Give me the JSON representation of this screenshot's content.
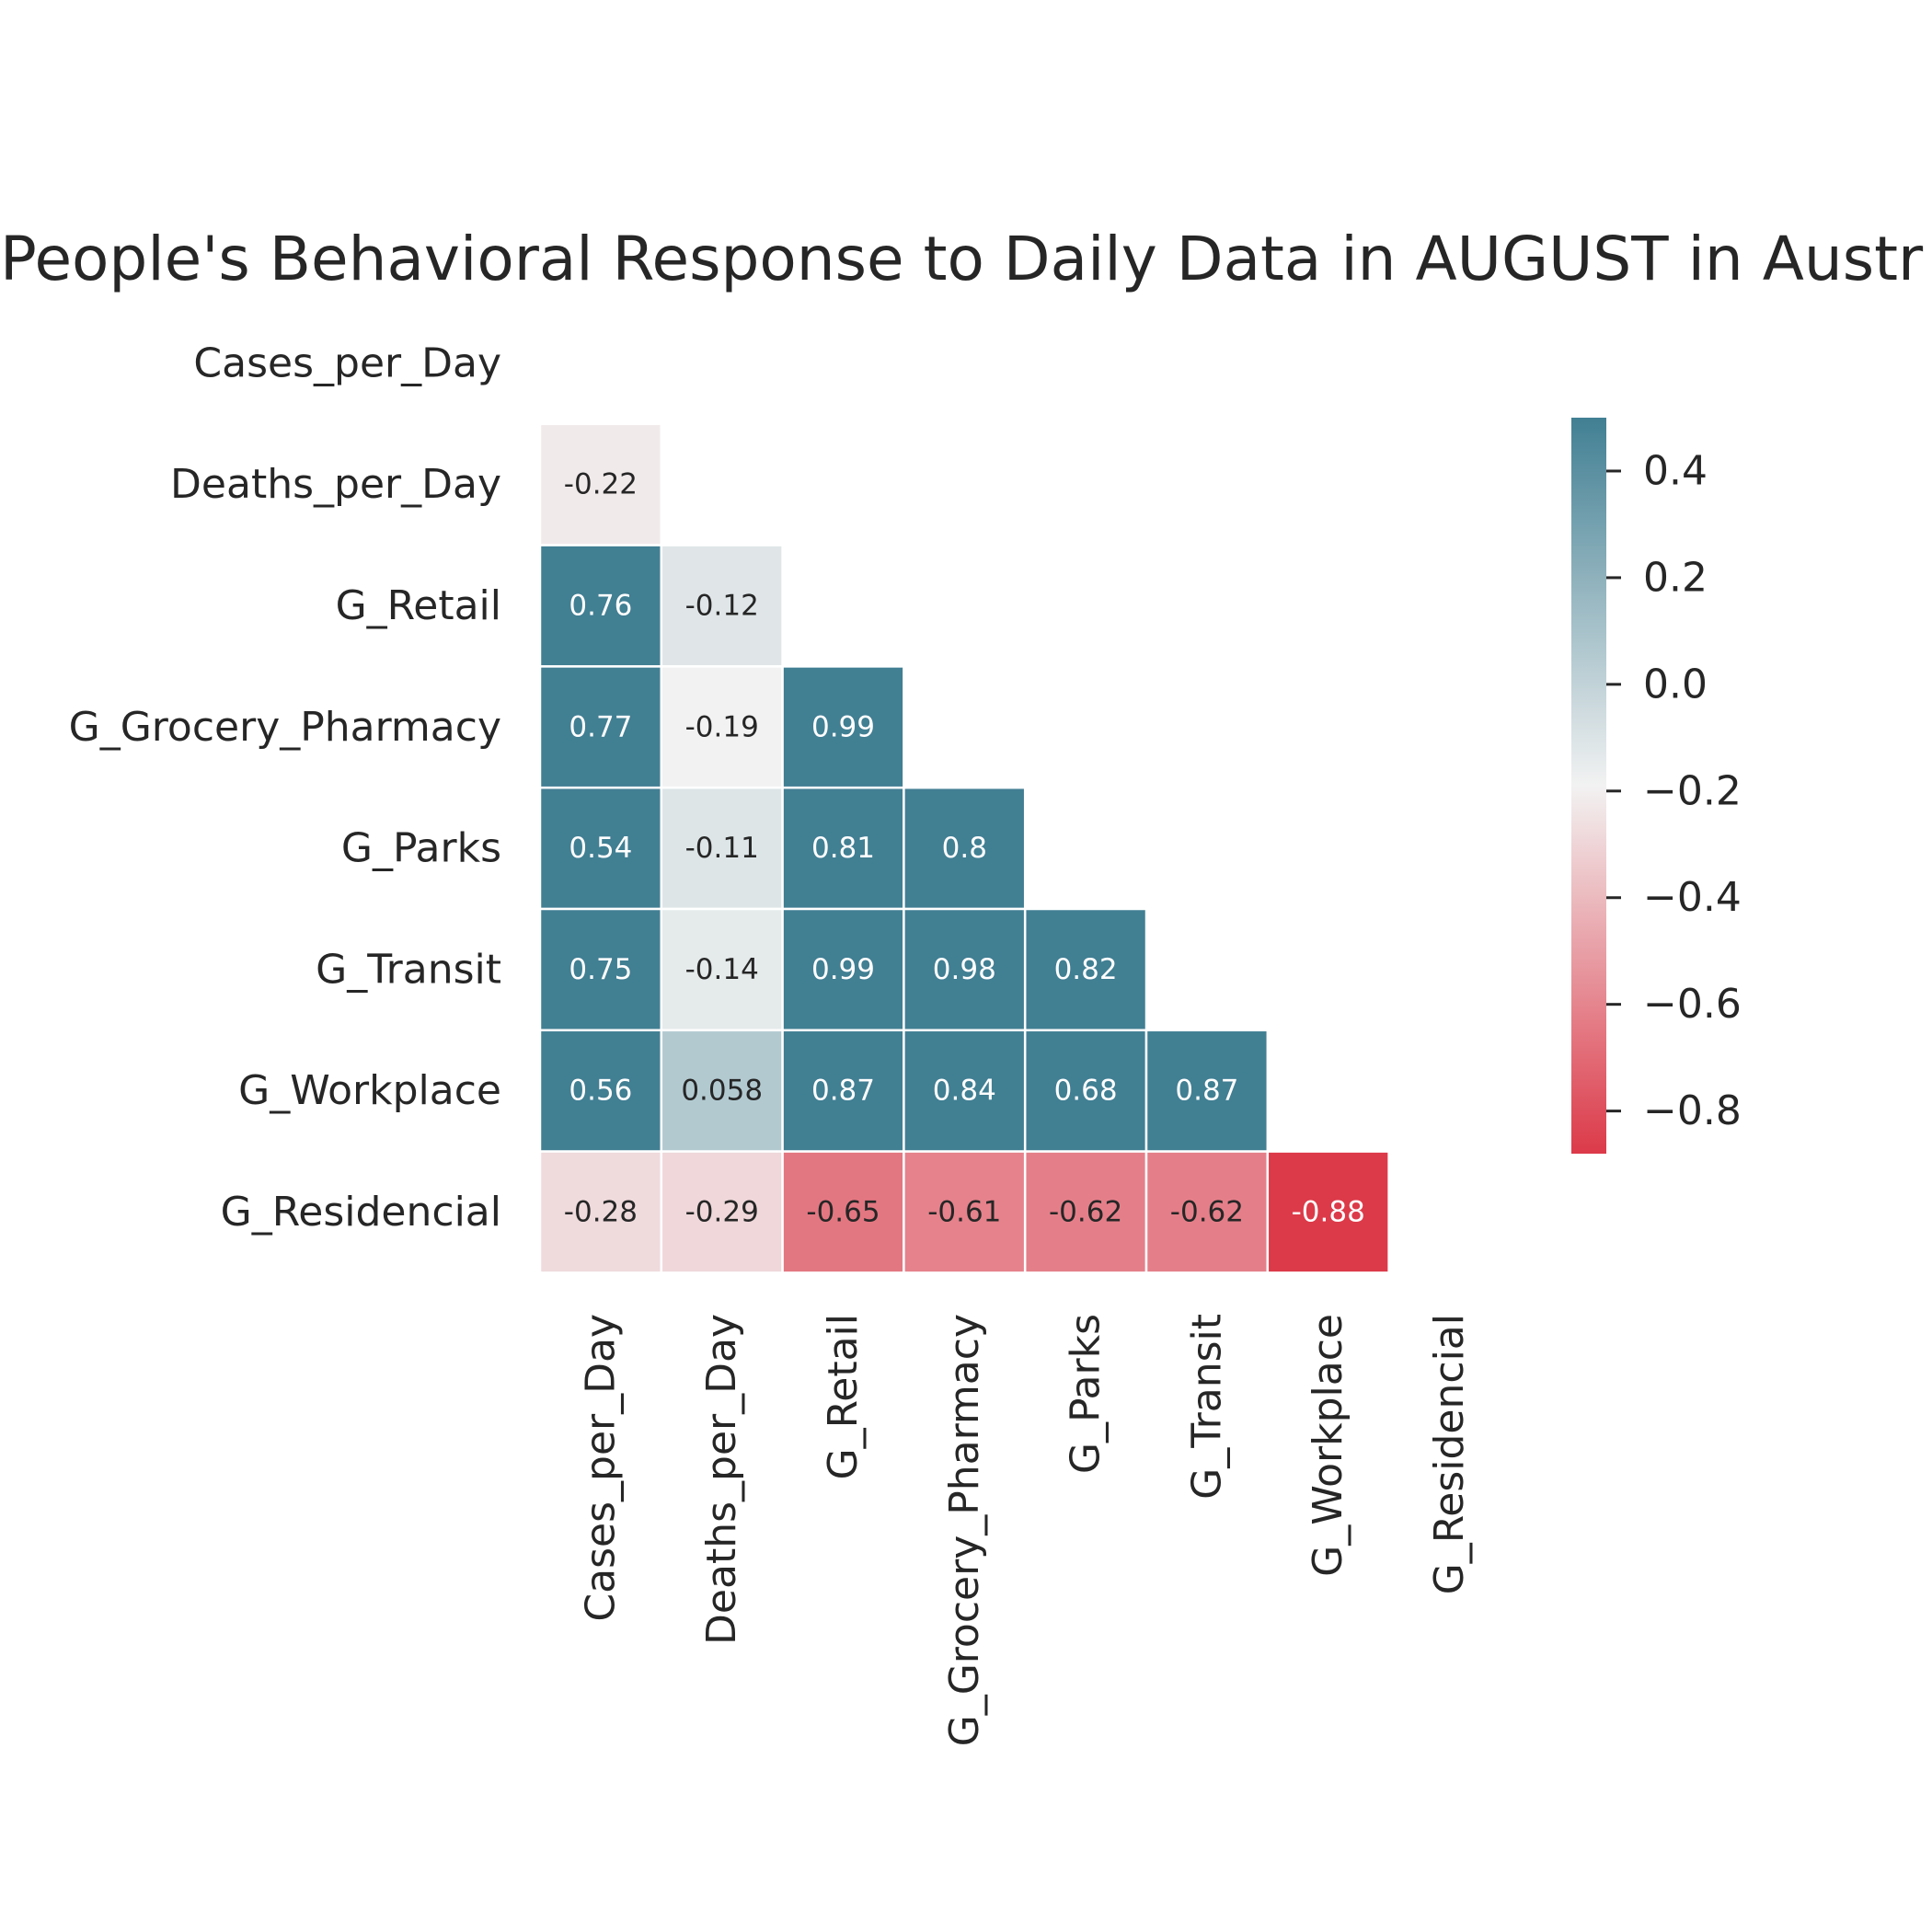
{
  "chart_data": {
    "type": "heatmap",
    "title": "People's Behavioral Response to Daily Data in AUGUST in Austr",
    "variables": [
      "Cases_per_Day",
      "Deaths_per_Day",
      "G_Retail",
      "G_Grocery_Pharmacy",
      "G_Parks",
      "G_Transit",
      "G_Workplace",
      "G_Residencial"
    ],
    "lower_triangle_rows": [
      [],
      [
        "-0.22"
      ],
      [
        "0.76",
        "-0.12"
      ],
      [
        "0.77",
        "-0.19",
        "0.99"
      ],
      [
        "0.54",
        "-0.11",
        "0.81",
        "0.8"
      ],
      [
        "0.75",
        "-0.14",
        "0.99",
        "0.98",
        "0.82"
      ],
      [
        "0.56",
        "0.058",
        "0.87",
        "0.84",
        "0.68",
        "0.87"
      ],
      [
        "-0.28",
        "-0.29",
        "-0.65",
        "-0.61",
        "-0.62",
        "-0.62",
        "-0.88"
      ]
    ],
    "mask": "upper-triangle-including-diagonal",
    "colormap": {
      "negative": "#dc3a49",
      "center": "#f2f2f2",
      "positive": "#417f93"
    },
    "vmin": -0.88,
    "vmax": 0.5,
    "colorbar": {
      "ticks": [
        0.4,
        0.2,
        0.0,
        -0.2,
        -0.4,
        -0.6,
        -0.8
      ],
      "tick_labels": [
        "0.4",
        "0.2",
        "0.0",
        "−0.2",
        "−0.4",
        "−0.6",
        "−0.8"
      ]
    },
    "grid": false,
    "legend": "colorbar-right"
  }
}
